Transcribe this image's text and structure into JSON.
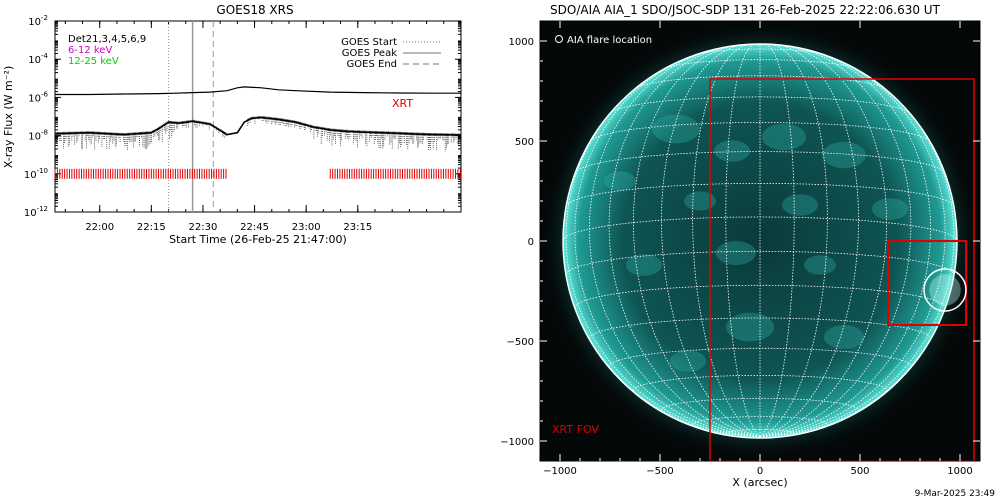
{
  "colors": {
    "goes_low": "#000000",
    "goes_high": "#000000",
    "channel_6_12": "#cc00cc",
    "channel_12_25": "#00cc00",
    "xrt": "#e00000",
    "disk": "#0d6f6a",
    "disk_bright": "#3fd6c8",
    "grid": "#ffffff"
  },
  "footer": {
    "timestamp": "9-Mar-2025 23:49"
  },
  "chart_data": [
    {
      "type": "line",
      "title": "GOES18 XRS",
      "xlabel": "Start Time (26-Feb-25 21:47:00)",
      "ylabel": "X-ray Flux (W m⁻²)",
      "ylim_log10": [
        -12,
        -2
      ],
      "y_ticks": [
        {
          "exp": -2,
          "label": "10",
          "sup": "-2"
        },
        {
          "exp": -4,
          "label": "10",
          "sup": "-4"
        },
        {
          "exp": -6,
          "label": "10",
          "sup": "-6"
        },
        {
          "exp": -8,
          "label": "10",
          "sup": "-8"
        },
        {
          "exp": -10,
          "label": "10",
          "sup": "-10"
        },
        {
          "exp": -12,
          "label": "10",
          "sup": "-12"
        }
      ],
      "x_range_minutes": [
        0,
        118
      ],
      "x_ticks": [
        {
          "minute": 13,
          "label": "22:00"
        },
        {
          "minute": 28,
          "label": "22:15"
        },
        {
          "minute": 43,
          "label": "22:30"
        },
        {
          "minute": 58,
          "label": "22:45"
        },
        {
          "minute": 73,
          "label": "23:00"
        },
        {
          "minute": 88,
          "label": "23:15"
        }
      ],
      "legend_left": [
        {
          "text": "Det21,3,4,5,6,9",
          "color": "#000000"
        },
        {
          "text": "6-12 keV",
          "color": "#cc00cc"
        },
        {
          "text": "12-25 keV",
          "color": "#00cc00"
        }
      ],
      "legend_right": [
        {
          "text": "GOES Start",
          "style": "dotted"
        },
        {
          "text": "GOES Peak",
          "style": "solid"
        },
        {
          "text": "GOES End",
          "style": "dashed"
        }
      ],
      "xrt_label": "XRT",
      "event_lines_minutes": {
        "start": 33,
        "peak": 40,
        "end": 46
      },
      "series": [
        {
          "name": "",
          "x": [
            0,
            10,
            20,
            30,
            35,
            40,
            45,
            50,
            53,
            55,
            60,
            65,
            70,
            80,
            90,
            100,
            110,
            118
          ],
          "y_log10": [
            -5.85,
            -5.85,
            -5.82,
            -5.8,
            -5.78,
            -5.75,
            -5.72,
            -5.65,
            -5.5,
            -5.45,
            -5.5,
            -5.6,
            -5.65,
            -5.72,
            -5.75,
            -5.77,
            -5.78,
            -5.78
          ]
        },
        {
          "name": "",
          "x": [
            0,
            10,
            20,
            28,
            30,
            33,
            36,
            40,
            45,
            50,
            53,
            55,
            57,
            60,
            65,
            70,
            75,
            80,
            85,
            90,
            95,
            100,
            105,
            110,
            118
          ],
          "y_log10": [
            -7.9,
            -7.85,
            -7.95,
            -7.85,
            -7.65,
            -7.3,
            -7.35,
            -7.25,
            -7.4,
            -7.95,
            -7.85,
            -7.3,
            -7.1,
            -7.05,
            -7.15,
            -7.3,
            -7.55,
            -7.7,
            -7.78,
            -7.82,
            -7.85,
            -7.88,
            -7.92,
            -7.95,
            -7.97
          ]
        }
      ],
      "xrt_coverage_minutes": [
        [
          0,
          50
        ],
        [
          80,
          118
        ]
      ]
    },
    {
      "type": "image",
      "title": "SDO/AIA AIA_1 SDO/JSOC-SDP 131 26-Feb-2025 22:22:06.630 UT",
      "xlabel": "X (arcsec)",
      "ylabel": "",
      "xlim": [
        -1100,
        1100
      ],
      "ylim": [
        -1100,
        1100
      ],
      "x_ticks": [
        -1000,
        -500,
        0,
        500,
        1000
      ],
      "y_ticks": [
        -1000,
        -500,
        0,
        500,
        1000
      ],
      "x_tick_labels": [
        "−1000",
        "−500",
        "0",
        "500",
        "1000"
      ],
      "y_tick_labels": [
        "−1000",
        "−500",
        "0",
        "500",
        "1000"
      ],
      "solar_radius_arcsec": 985,
      "grid_spacing_deg": 10,
      "legend_flare": "AIA flare location",
      "flare_center_arcsec": [
        925,
        -245
      ],
      "flare_radius_arcsec": 105,
      "xrt_fov_label": "XRT FOV",
      "xrt_fov_arcsec": {
        "x0": -250,
        "x1": 1070,
        "y0": -1100,
        "y1": 810
      },
      "xrt_zoom_box_arcsec": {
        "x0": 640,
        "x1": 1030,
        "y0": -420,
        "y1": 0
      }
    }
  ]
}
